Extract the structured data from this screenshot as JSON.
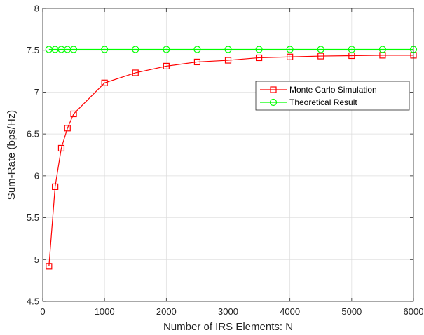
{
  "chart_data": {
    "type": "line",
    "xlabel": "Number of IRS Elements: N",
    "ylabel": "Sum-Rate (bps/Hz)",
    "xlim": [
      0,
      6000
    ],
    "ylim": [
      4.5,
      8
    ],
    "xticks": [
      0,
      1000,
      2000,
      3000,
      4000,
      5000,
      6000
    ],
    "yticks": [
      4.5,
      5,
      5.5,
      6,
      6.5,
      7,
      7.5,
      8
    ],
    "xtick_labels": [
      "0",
      "1000",
      "2000",
      "3000",
      "4000",
      "5000",
      "6000"
    ],
    "ytick_labels": [
      "4.5",
      "5",
      "5.5",
      "6",
      "6.5",
      "7",
      "7.5",
      "8"
    ],
    "grid": true,
    "legend_position": "right",
    "series": [
      {
        "name": "Monte Carlo Simulation",
        "color": "#ff0000",
        "marker": "square",
        "x": [
          100,
          200,
          300,
          400,
          500,
          1000,
          1500,
          2000,
          2500,
          3000,
          3500,
          4000,
          4500,
          5000,
          5500,
          6000
        ],
        "y": [
          4.92,
          5.87,
          6.33,
          6.57,
          6.74,
          7.11,
          7.23,
          7.31,
          7.36,
          7.38,
          7.41,
          7.42,
          7.43,
          7.435,
          7.44,
          7.44
        ]
      },
      {
        "name": "Theoretical Result",
        "color": "#00ff00",
        "marker": "circle",
        "x": [
          100,
          200,
          300,
          400,
          500,
          1000,
          1500,
          2000,
          2500,
          3000,
          3500,
          4000,
          4500,
          5000,
          5500,
          6000
        ],
        "y": [
          7.51,
          7.51,
          7.51,
          7.51,
          7.51,
          7.51,
          7.51,
          7.51,
          7.51,
          7.51,
          7.51,
          7.51,
          7.51,
          7.51,
          7.51,
          7.51
        ]
      }
    ]
  }
}
